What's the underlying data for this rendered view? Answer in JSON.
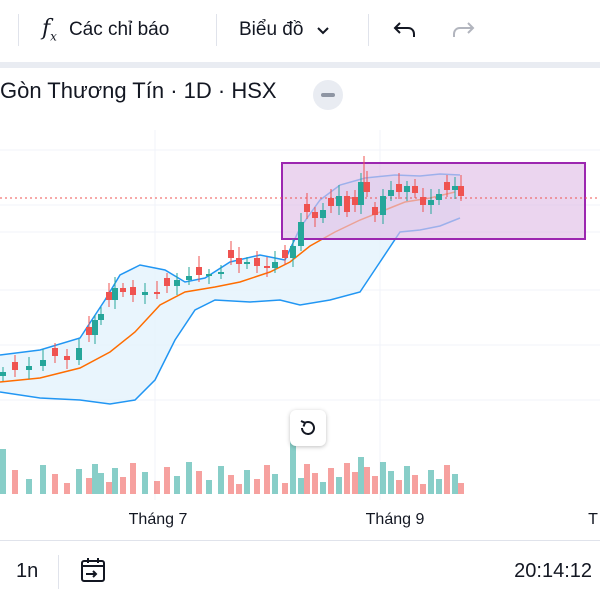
{
  "toolbar": {
    "indicators_label": "Các chỉ báo",
    "chart_type_label": "Biểu đồ",
    "icons": [
      "function-icon",
      "chevron-down-icon",
      "undo-icon",
      "redo-icon"
    ]
  },
  "header": {
    "symbol_title": "Gòn Thương Tín · 1D · HSX"
  },
  "chart": {
    "x_labels": [
      "Tháng 7",
      "Tháng 9",
      "T"
    ],
    "colors": {
      "up": "#26a69a",
      "down": "#ef5350",
      "band": "#2196f3",
      "band_fill": "#e3f2fd",
      "basis": "#ff6d00",
      "rectangle": "#9c27b0",
      "rectangle_fill": "#e1bee7",
      "price_line": "#ef5350"
    }
  },
  "chart_data": {
    "type": "candlestick",
    "title": "Gòn Thương Tín · 1D · HSX",
    "x_tick_labels": [
      "Tháng 7",
      "Tháng 9",
      "T"
    ],
    "indicators": [
      "Bollinger Bands"
    ],
    "note": "Daily candles, trending up from early July into September; latest candle red"
  },
  "bottom_bar": {
    "interval": "1n",
    "time": "20:14:12"
  }
}
